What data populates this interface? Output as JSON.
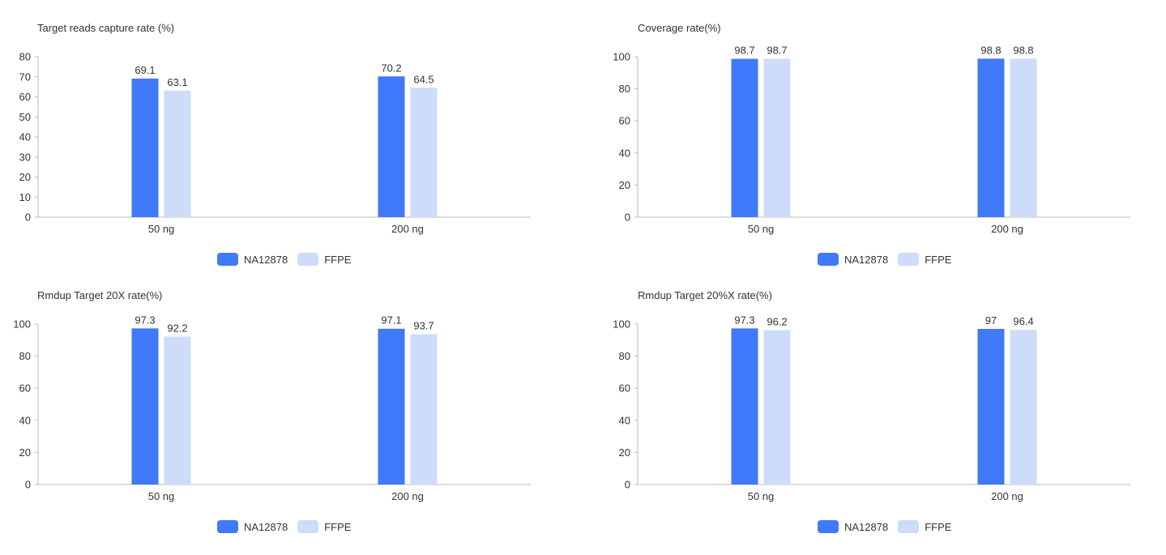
{
  "colors": {
    "na12878": "#4079f9",
    "ffpe": "#cddcf9"
  },
  "legend_items": [
    "NA12878",
    "FFPE"
  ],
  "chart_data": [
    {
      "type": "bar",
      "title": "Target reads capture rate (%)",
      "categories": [
        "50 ng",
        "200 ng"
      ],
      "series": [
        {
          "name": "NA12878",
          "values": [
            69.1,
            70.2
          ]
        },
        {
          "name": "FFPE",
          "values": [
            63.1,
            64.5
          ]
        }
      ],
      "ylim": [
        0,
        80
      ],
      "yticks": [
        0,
        10,
        20,
        30,
        40,
        50,
        60,
        70,
        80
      ],
      "legend": "bottom-center",
      "grid": false
    },
    {
      "type": "bar",
      "title": "Coverage rate(%)",
      "categories": [
        "50 ng",
        "200 ng"
      ],
      "series": [
        {
          "name": "NA12878",
          "values": [
            98.7,
            98.8
          ]
        },
        {
          "name": "FFPE",
          "values": [
            98.7,
            98.8
          ]
        }
      ],
      "ylim": [
        0,
        100
      ],
      "yticks": [
        0,
        20,
        40,
        60,
        80,
        100
      ],
      "legend": "bottom-center",
      "grid": false
    },
    {
      "type": "bar",
      "title": "Rmdup Target 20X rate(%)",
      "categories": [
        "50 ng",
        "200 ng"
      ],
      "series": [
        {
          "name": "NA12878",
          "values": [
            97.3,
            97.1
          ]
        },
        {
          "name": "FFPE",
          "values": [
            92.2,
            93.7
          ]
        }
      ],
      "ylim": [
        0,
        100
      ],
      "yticks": [
        0,
        20,
        40,
        60,
        80,
        100
      ],
      "legend": "bottom-center",
      "grid": false
    },
    {
      "type": "bar",
      "title": "Rmdup Target 20%X rate(%)",
      "categories": [
        "50 ng",
        "200 ng"
      ],
      "series": [
        {
          "name": "NA12878",
          "values": [
            97.3,
            97
          ]
        },
        {
          "name": "FFPE",
          "values": [
            96.2,
            96.4
          ]
        }
      ],
      "ylim": [
        0,
        100
      ],
      "yticks": [
        0,
        20,
        40,
        60,
        80,
        100
      ],
      "legend": "bottom-center",
      "grid": false
    }
  ]
}
